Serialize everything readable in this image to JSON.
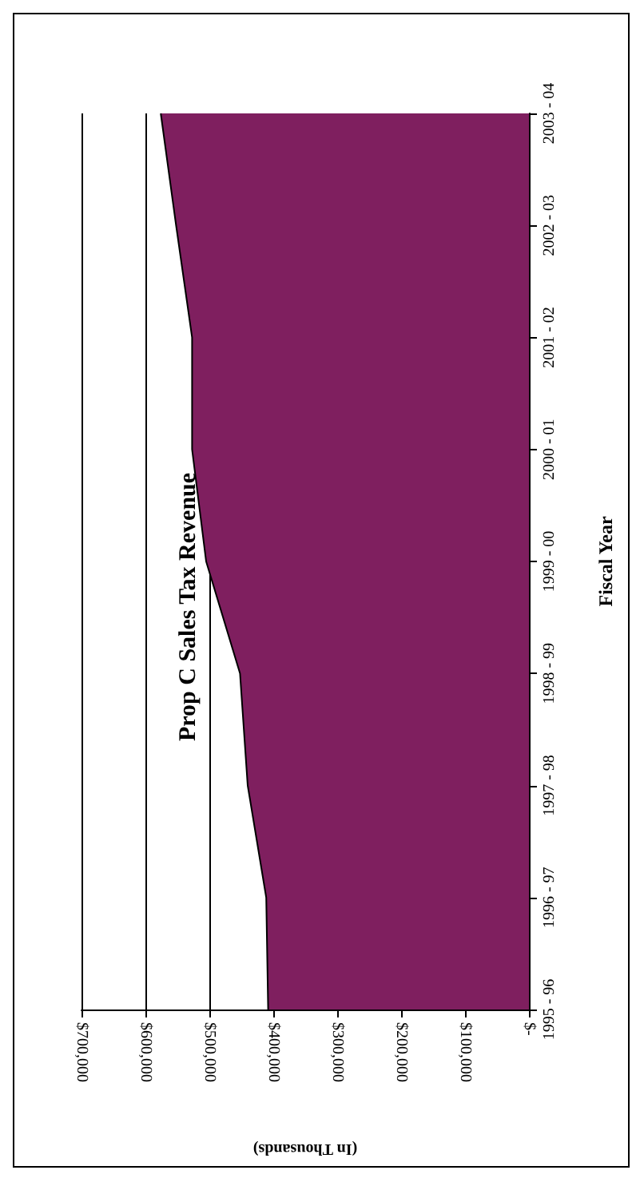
{
  "chart_data": {
    "type": "area",
    "orientation": "horizontal",
    "title": "Prop C Sales Tax Revenue",
    "xlabel": "(In Thousands)",
    "ylabel": "Fiscal Year",
    "categories": [
      "2003 - 04",
      "2002 - 03",
      "2001 - 02",
      "2000 - 01",
      "1999 - 00",
      "1998 - 99",
      "1997 - 98",
      "1996 - 97",
      "1995 - 96"
    ],
    "values": [
      576000,
      552000,
      527000,
      527000,
      505000,
      452000,
      440000,
      411000,
      408000
    ],
    "color": "#7f1f5f",
    "xlim": [
      700000,
      0
    ],
    "xticks": [
      {
        "value": 700000,
        "label": "$700,000"
      },
      {
        "value": 600000,
        "label": "$600,000"
      },
      {
        "value": 500000,
        "label": "$500,000"
      },
      {
        "value": 400000,
        "label": "$400,000"
      },
      {
        "value": 300000,
        "label": "$300,000"
      },
      {
        "value": 200000,
        "label": "$200,000"
      },
      {
        "value": 100000,
        "label": "$100,000"
      },
      {
        "value": 0,
        "label": "$-"
      }
    ],
    "grid": "x"
  }
}
